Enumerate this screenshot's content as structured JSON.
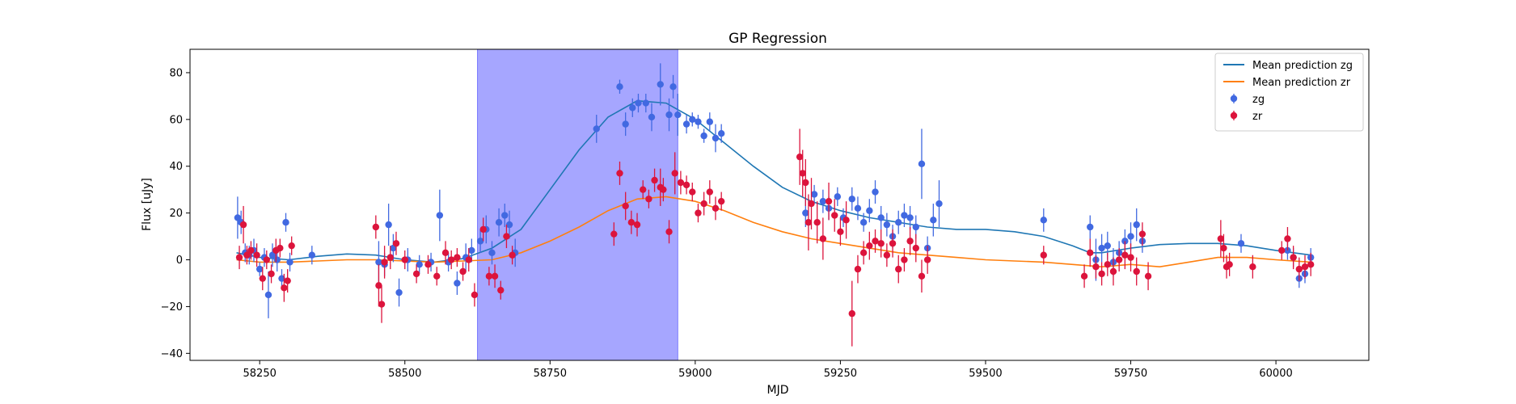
{
  "chart_data": {
    "type": "scatter",
    "title": "GP Regression",
    "xlabel": "MJD",
    "ylabel": "Flux [uJy]",
    "xlim": [
      58130,
      60160
    ],
    "ylim": [
      -43,
      90
    ],
    "xticks": [
      58250,
      58500,
      58750,
      59000,
      59250,
      59500,
      59750,
      60000
    ],
    "yticks": [
      -40,
      -20,
      0,
      20,
      40,
      60,
      80
    ],
    "grid": false,
    "legend_position": "top-right",
    "shaded_region": {
      "x_start": 58625,
      "x_end": 58970,
      "color": "#a6a6ff"
    },
    "series": [
      {
        "name": "Mean prediction zg",
        "kind": "line",
        "color": "#1f77b4",
        "x": [
          58210,
          58250,
          58300,
          58350,
          58400,
          58450,
          58500,
          58550,
          58600,
          58650,
          58700,
          58750,
          58800,
          58850,
          58900,
          58950,
          59000,
          59050,
          59100,
          59150,
          59200,
          59250,
          59300,
          59350,
          59400,
          59450,
          59500,
          59550,
          59600,
          59650,
          59680,
          59700,
          59750,
          59800,
          59850,
          59900,
          59950,
          60000,
          60060
        ],
        "y": [
          3,
          1,
          0,
          1.5,
          2.5,
          2,
          0,
          -1,
          0.5,
          5,
          13,
          30,
          47,
          61,
          68,
          67,
          60,
          50,
          40,
          31,
          25,
          21,
          18,
          16,
          14,
          13,
          13,
          12,
          10,
          6,
          3,
          3,
          5,
          6.5,
          7,
          7,
          6,
          4,
          2
        ]
      },
      {
        "name": "Mean prediction zr",
        "kind": "line",
        "color": "#ff7f0e",
        "x": [
          58210,
          58250,
          58300,
          58350,
          58400,
          58450,
          58500,
          58550,
          58600,
          58650,
          58700,
          58750,
          58800,
          58850,
          58900,
          58950,
          59000,
          59050,
          59100,
          59150,
          59200,
          59250,
          59300,
          59350,
          59400,
          59450,
          59500,
          59550,
          59600,
          59650,
          59700,
          59750,
          59800,
          59850,
          59900,
          59950,
          60000,
          60060
        ],
        "y": [
          0,
          -1,
          -1,
          -0.5,
          0,
          0,
          -0.5,
          -1,
          -0.5,
          0,
          3,
          8,
          14,
          21,
          26,
          27,
          25,
          21,
          16,
          12,
          9,
          7,
          5,
          3,
          2,
          1,
          0,
          -0.5,
          -1,
          -2,
          -3,
          -2,
          -3,
          -1,
          1,
          1,
          0,
          -1
        ]
      },
      {
        "name": "zg",
        "kind": "errorbar",
        "color": "#4169e1",
        "x": [
          58212,
          58218,
          58225,
          58232,
          58240,
          58250,
          58258,
          58265,
          58272,
          58280,
          58288,
          58295,
          58302,
          58340,
          58455,
          58465,
          58472,
          58480,
          58490,
          58505,
          58525,
          58545,
          58560,
          58575,
          58590,
          58605,
          58615,
          58630,
          58640,
          58650,
          58662,
          58672,
          58680,
          58690,
          58830,
          58870,
          58880,
          58892,
          58902,
          58915,
          58925,
          58940,
          58955,
          58962,
          58970,
          58985,
          58995,
          59005,
          59015,
          59025,
          59035,
          59045,
          59190,
          59205,
          59220,
          59230,
          59245,
          59255,
          59270,
          59280,
          59290,
          59300,
          59310,
          59320,
          59330,
          59340,
          59350,
          59360,
          59370,
          59380,
          59390,
          59400,
          59410,
          59420,
          59600,
          59680,
          59690,
          59700,
          59710,
          59720,
          59730,
          59740,
          59750,
          59760,
          59770,
          59940,
          60020,
          60030,
          60040,
          60050,
          60060
        ],
        "y": [
          18,
          16,
          3,
          2,
          4,
          -4,
          1,
          -15,
          2,
          0,
          -8,
          16,
          -1,
          2,
          -1,
          -2,
          15,
          5,
          -14,
          0,
          -2,
          -1,
          19,
          -1,
          -10,
          1,
          4,
          8,
          13,
          3,
          16,
          19,
          15,
          3,
          56,
          74,
          58,
          65,
          67,
          67,
          61,
          75,
          62,
          74,
          62,
          58,
          60,
          59,
          53,
          59,
          52,
          54,
          20,
          28,
          25,
          22,
          27,
          18,
          26,
          22,
          16,
          21,
          29,
          18,
          15,
          10,
          16,
          19,
          18,
          14,
          41,
          5,
          17,
          24,
          17,
          14,
          0,
          5,
          6,
          -1,
          3,
          8,
          10,
          15,
          8,
          7,
          4,
          1,
          -8,
          -6,
          1
        ],
        "err": [
          9,
          5,
          4,
          4,
          5,
          3,
          4,
          10,
          5,
          5,
          4,
          4,
          4,
          4,
          9,
          5,
          9,
          6,
          6,
          5,
          4,
          4,
          11,
          4,
          5,
          6,
          5,
          5,
          6,
          5,
          6,
          5,
          6,
          6,
          6,
          3,
          5,
          4,
          4,
          4,
          6,
          9,
          7,
          5,
          9,
          4,
          3,
          3,
          3,
          4,
          6,
          4,
          6,
          4,
          5,
          5,
          4,
          4,
          5,
          5,
          4,
          5,
          5,
          5,
          5,
          5,
          5,
          5,
          5,
          5,
          15,
          5,
          7,
          10,
          5,
          5,
          9,
          6,
          6,
          6,
          5,
          5,
          6,
          7,
          5,
          4,
          4,
          4,
          4,
          4,
          4
        ]
      },
      {
        "name": "zr",
        "kind": "errorbar",
        "color": "#dc143c",
        "x": [
          58215,
          58222,
          58228,
          58235,
          58245,
          58255,
          58262,
          58270,
          58278,
          58285,
          58292,
          58298,
          58305,
          58450,
          58455,
          58460,
          58465,
          58475,
          58485,
          58500,
          58520,
          58540,
          58555,
          58570,
          58580,
          58590,
          58600,
          58610,
          58620,
          58635,
          58645,
          58655,
          58665,
          58675,
          58685,
          58860,
          58870,
          58880,
          58890,
          58900,
          58910,
          58920,
          58930,
          58940,
          58945,
          58955,
          58965,
          58975,
          58985,
          58995,
          59005,
          59015,
          59025,
          59035,
          59045,
          59180,
          59185,
          59190,
          59195,
          59200,
          59210,
          59220,
          59230,
          59240,
          59250,
          59260,
          59270,
          59280,
          59290,
          59300,
          59310,
          59320,
          59330,
          59340,
          59350,
          59360,
          59370,
          59380,
          59390,
          59400,
          59600,
          59670,
          59680,
          59690,
          59700,
          59710,
          59720,
          59730,
          59740,
          59750,
          59760,
          59770,
          59780,
          59905,
          59910,
          59915,
          59920,
          59960,
          60010,
          60020,
          60030,
          60040,
          60050,
          60060
        ],
        "y": [
          1,
          15,
          2,
          4,
          2,
          -8,
          0,
          -6,
          4,
          5,
          -12,
          -9,
          6,
          14,
          -11,
          -19,
          -1,
          1,
          7,
          0,
          -6,
          -2,
          -7,
          3,
          0,
          1,
          -5,
          0,
          -15,
          13,
          -7,
          -7,
          -13,
          10,
          2,
          11,
          37,
          23,
          16,
          15,
          30,
          26,
          34,
          31,
          30,
          12,
          37,
          33,
          32,
          29,
          20,
          24,
          29,
          22,
          25,
          44,
          37,
          33,
          16,
          24,
          16,
          9,
          25,
          19,
          12,
          17,
          -23,
          -4,
          3,
          6,
          8,
          7,
          2,
          7,
          -4,
          0,
          8,
          5,
          -7,
          0,
          2,
          -7,
          3,
          -3,
          -6,
          -2,
          -5,
          0,
          2,
          1,
          -5,
          11,
          -7,
          9,
          5,
          -3,
          -2,
          -3,
          4,
          9,
          1,
          -4,
          -3,
          -2
        ],
        "err": [
          5,
          8,
          4,
          4,
          5,
          5,
          4,
          4,
          5,
          4,
          6,
          5,
          4,
          5,
          9,
          8,
          7,
          5,
          5,
          4,
          4,
          4,
          4,
          5,
          4,
          4,
          4,
          5,
          5,
          5,
          4,
          5,
          4,
          5,
          4,
          5,
          5,
          6,
          5,
          5,
          4,
          4,
          5,
          8,
          5,
          5,
          9,
          5,
          4,
          4,
          4,
          5,
          5,
          5,
          4,
          12,
          10,
          10,
          12,
          11,
          9,
          9,
          8,
          7,
          6,
          8,
          14,
          6,
          5,
          6,
          5,
          6,
          5,
          6,
          6,
          5,
          6,
          6,
          7,
          6,
          4,
          5,
          6,
          5,
          5,
          5,
          6,
          5,
          6,
          6,
          6,
          5,
          6,
          8,
          6,
          5,
          5,
          5,
          4,
          5,
          5,
          5,
          5,
          5
        ]
      }
    ]
  }
}
